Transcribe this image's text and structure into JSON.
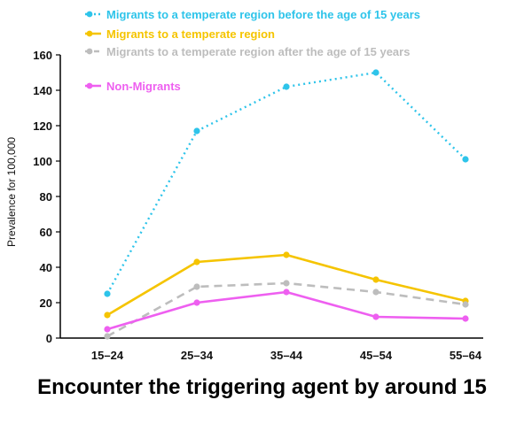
{
  "caption": "Encounter the triggering agent by around 15",
  "chart_data": {
    "type": "line",
    "categories": [
      "15–24",
      "25–34",
      "35–44",
      "45–54",
      "55–64"
    ],
    "ylabel": "Prevalence for 100,000",
    "xlabel": "",
    "ylim": [
      0,
      160
    ],
    "yticks": [
      0,
      20,
      40,
      60,
      80,
      100,
      120,
      140,
      160
    ],
    "grid": false,
    "legend_position": "top",
    "series": [
      {
        "name": "Migrants to a temperate region before the age of 15 years",
        "values": [
          25,
          117,
          142,
          150,
          101
        ],
        "color": "#2ec4ea",
        "dash": "dotted"
      },
      {
        "name": "Migrants to a temperate region",
        "values": [
          13,
          43,
          47,
          33,
          21
        ],
        "color": "#f5c400",
        "dash": "solid"
      },
      {
        "name": "Migrants to a temperate region after the age of 15 years",
        "values": [
          1,
          29,
          31,
          26,
          19
        ],
        "color": "#bdbdbd",
        "dash": "dashed"
      },
      {
        "name": "Non-Migrants",
        "values": [
          5,
          20,
          26,
          12,
          11
        ],
        "color": "#ee5ff0",
        "dash": "solid"
      }
    ]
  }
}
